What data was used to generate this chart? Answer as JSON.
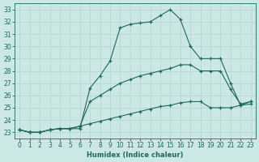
{
  "xlabel": "Humidex (Indice chaleur)",
  "bg_color": "#cce8e4",
  "grid_color": "#afd4cf",
  "line_color": "#1a6b5a",
  "xlim": [
    -0.5,
    23.5
  ],
  "ylim": [
    22.5,
    33.5
  ],
  "xticks": [
    0,
    1,
    2,
    3,
    4,
    5,
    6,
    7,
    8,
    9,
    10,
    11,
    12,
    13,
    14,
    15,
    16,
    17,
    18,
    19,
    20,
    21,
    22,
    23
  ],
  "yticks": [
    23,
    24,
    25,
    26,
    27,
    28,
    29,
    30,
    31,
    32,
    33
  ],
  "line1_x": [
    0,
    1,
    2,
    3,
    4,
    5,
    6,
    7,
    8,
    9,
    10,
    11,
    12,
    13,
    14,
    15,
    16,
    17,
    18,
    19,
    20,
    21,
    22,
    23
  ],
  "line1_y": [
    23.2,
    23.0,
    23.0,
    23.2,
    23.3,
    23.3,
    23.3,
    26.6,
    27.6,
    28.8,
    31.5,
    31.8,
    31.9,
    32.0,
    32.5,
    33.0,
    32.2,
    30.0,
    29.0,
    29.0,
    29.0,
    27.0,
    25.2,
    25.3
  ],
  "line2_x": [
    0,
    1,
    2,
    3,
    4,
    5,
    6,
    7,
    8,
    9,
    10,
    11,
    12,
    13,
    14,
    15,
    16,
    17,
    18,
    19,
    20,
    21,
    22,
    23
  ],
  "line2_y": [
    23.2,
    23.0,
    23.0,
    23.2,
    23.3,
    23.3,
    23.5,
    25.5,
    26.0,
    26.5,
    27.0,
    27.3,
    27.6,
    27.8,
    28.0,
    28.2,
    28.5,
    28.5,
    28.0,
    28.0,
    28.0,
    26.5,
    25.3,
    25.5
  ],
  "line3_x": [
    0,
    1,
    2,
    3,
    4,
    5,
    6,
    7,
    8,
    9,
    10,
    11,
    12,
    13,
    14,
    15,
    16,
    17,
    18,
    19,
    20,
    21,
    22,
    23
  ],
  "line3_y": [
    23.2,
    23.0,
    23.0,
    23.2,
    23.3,
    23.3,
    23.5,
    23.7,
    23.9,
    24.1,
    24.3,
    24.5,
    24.7,
    24.9,
    25.1,
    25.2,
    25.4,
    25.5,
    25.5,
    25.0,
    25.0,
    25.0,
    25.2,
    25.5
  ]
}
